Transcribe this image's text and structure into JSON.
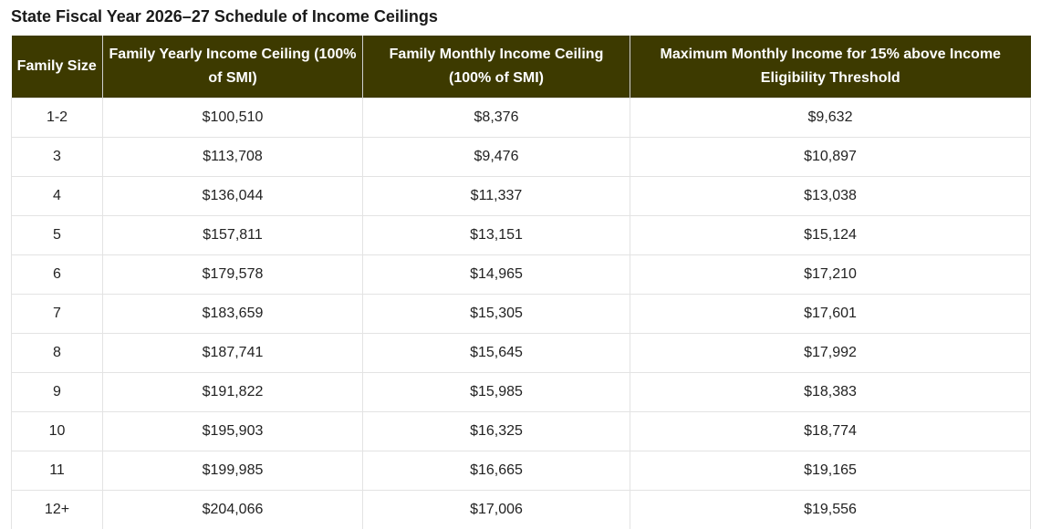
{
  "title": "State Fiscal Year 2026–27 Schedule of Income Ceilings",
  "colors": {
    "header_background": "#3d3a00",
    "header_text": "#ffffff",
    "border": "#e3e3e3"
  },
  "table": {
    "headers": [
      "Family Size",
      "Family Yearly Income Ceiling (100% of SMI)",
      "Family Monthly Income Ceiling (100% of SMI)",
      "Maximum Monthly Income for 15% above Income Eligibility Threshold"
    ],
    "rows": [
      [
        "1-2",
        "$100,510",
        "$8,376",
        "$9,632"
      ],
      [
        "3",
        "$113,708",
        "$9,476",
        "$10,897"
      ],
      [
        "4",
        "$136,044",
        "$11,337",
        "$13,038"
      ],
      [
        "5",
        "$157,811",
        "$13,151",
        "$15,124"
      ],
      [
        "6",
        "$179,578",
        "$14,965",
        "$17,210"
      ],
      [
        "7",
        "$183,659",
        "$15,305",
        "$17,601"
      ],
      [
        "8",
        "$187,741",
        "$15,645",
        "$17,992"
      ],
      [
        "9",
        "$191,822",
        "$15,985",
        "$18,383"
      ],
      [
        "10",
        "$195,903",
        "$16,325",
        "$18,774"
      ],
      [
        "11",
        "$199,985",
        "$16,665",
        "$19,165"
      ],
      [
        "12+",
        "$204,066",
        "$17,006",
        "$19,556"
      ]
    ]
  }
}
